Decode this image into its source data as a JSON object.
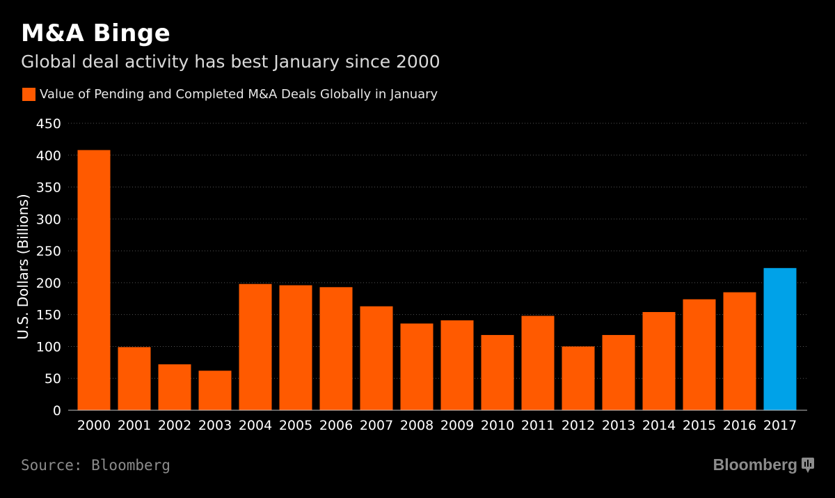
{
  "header": {
    "title": "M&A Binge",
    "subtitle": "Global deal activity has best January since 2000"
  },
  "legend": {
    "label": "Value of Pending and Completed M&A Deals Globally in January",
    "color": "#ff5a00"
  },
  "footer": {
    "source": "Source: Bloomberg",
    "brand": "Bloomberg"
  },
  "colors": {
    "bar": "#ff5a00",
    "highlight": "#00a2e8",
    "background": "#000000",
    "grid": "#555555",
    "text": "#ffffff"
  },
  "chart_data": {
    "type": "bar",
    "title": "M&A Binge",
    "subtitle": "Global deal activity has best January since 2000",
    "ylabel": "U.S. Dollars (Billions)",
    "xlabel": "",
    "ylim": [
      0,
      450
    ],
    "yticks": [
      0,
      50,
      100,
      150,
      200,
      250,
      300,
      350,
      400,
      450
    ],
    "grid": true,
    "categories": [
      "2000",
      "2001",
      "2002",
      "2003",
      "2004",
      "2005",
      "2006",
      "2007",
      "2008",
      "2009",
      "2010",
      "2011",
      "2012",
      "2013",
      "2014",
      "2015",
      "2016",
      "2017"
    ],
    "series": [
      {
        "name": "Value of Pending and Completed M&A Deals Globally in January",
        "values": [
          408,
          99,
          72,
          62,
          198,
          196,
          193,
          163,
          136,
          141,
          118,
          148,
          100,
          118,
          154,
          174,
          185,
          223
        ]
      }
    ],
    "highlight_category": "2017"
  }
}
